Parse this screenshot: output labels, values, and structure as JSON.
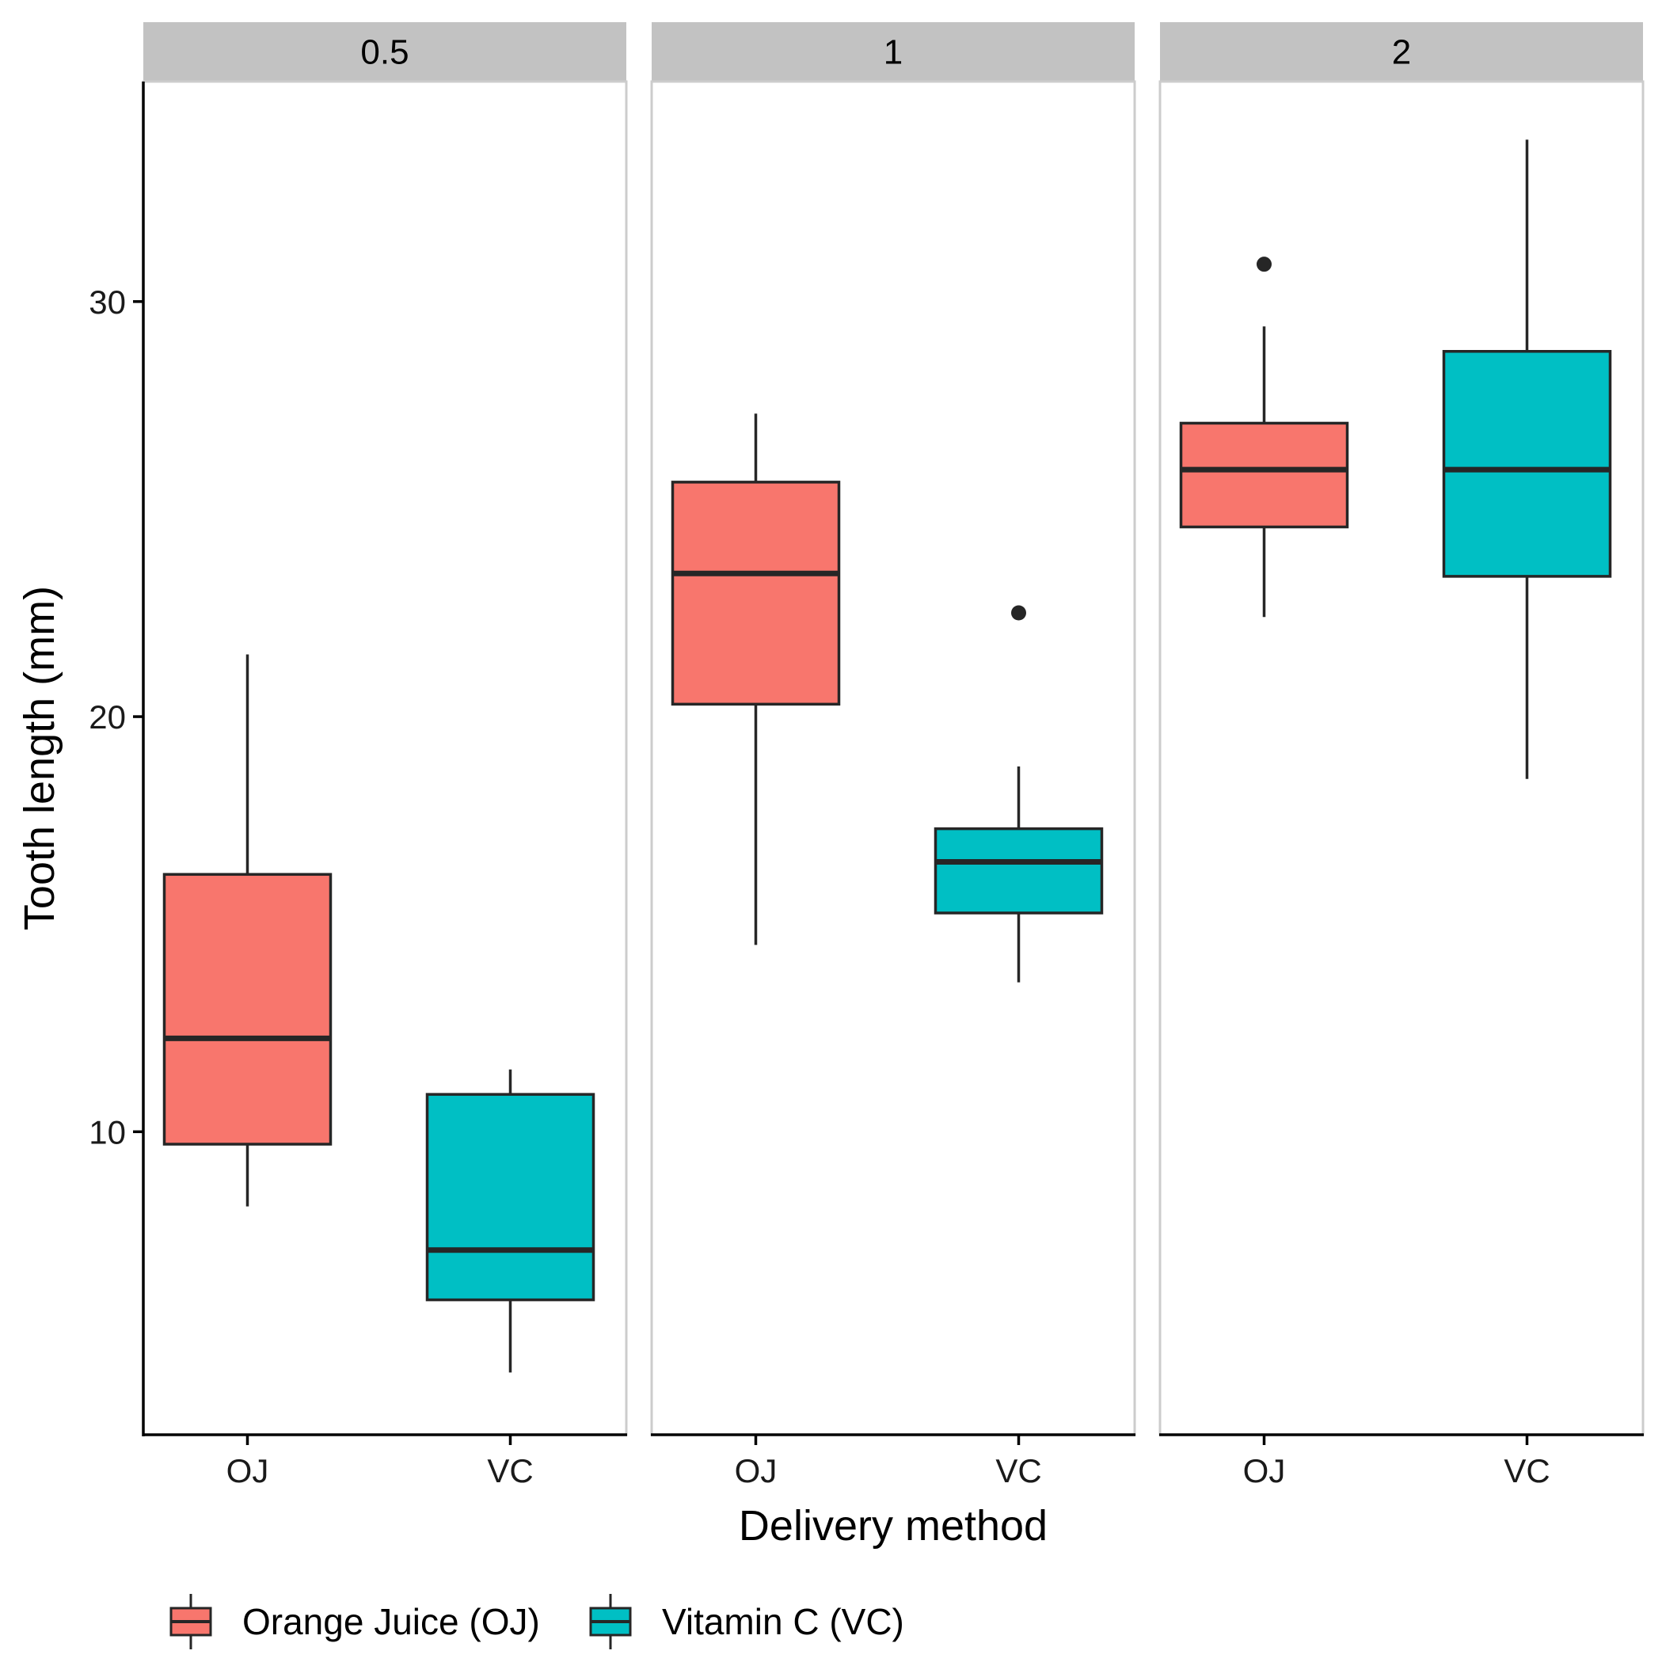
{
  "chart_data": {
    "type": "boxplot",
    "xlabel": "Delivery method",
    "ylabel": "Tooth length (mm)",
    "yticks": [
      10,
      20,
      30
    ],
    "ylim": [
      2.7,
      35.3
    ],
    "categories": [
      "OJ",
      "VC"
    ],
    "colors": {
      "OJ": "#F8766D",
      "VC": "#00BFC4",
      "outline": "#262626"
    },
    "legend": {
      "position": "bottom-left",
      "items": [
        {
          "key": "OJ",
          "label": "Orange Juice (OJ)"
        },
        {
          "key": "VC",
          "label": "Vitamin C (VC)"
        }
      ]
    },
    "facets": [
      {
        "label": "0.5",
        "boxes": [
          {
            "group": "OJ",
            "min": 8.2,
            "q1": 9.7,
            "median": 12.25,
            "q3": 16.2,
            "max": 21.5,
            "outliers": []
          },
          {
            "group": "VC",
            "min": 4.2,
            "q1": 5.95,
            "median": 7.15,
            "q3": 10.9,
            "max": 11.5,
            "outliers": []
          }
        ]
      },
      {
        "label": "1",
        "boxes": [
          {
            "group": "OJ",
            "min": 14.5,
            "q1": 20.3,
            "median": 23.45,
            "q3": 25.65,
            "max": 27.3,
            "outliers": []
          },
          {
            "group": "VC",
            "min": 13.6,
            "q1": 15.27,
            "median": 16.5,
            "q3": 17.3,
            "max": 18.8,
            "outliers": [
              22.5
            ]
          }
        ]
      },
      {
        "label": "2",
        "boxes": [
          {
            "group": "OJ",
            "min": 22.4,
            "q1": 24.57,
            "median": 25.95,
            "q3": 27.07,
            "max": 29.4,
            "outliers": [
              30.9
            ]
          },
          {
            "group": "VC",
            "min": 18.5,
            "q1": 23.38,
            "median": 25.95,
            "q3": 28.8,
            "max": 33.9,
            "outliers": []
          }
        ]
      }
    ]
  }
}
